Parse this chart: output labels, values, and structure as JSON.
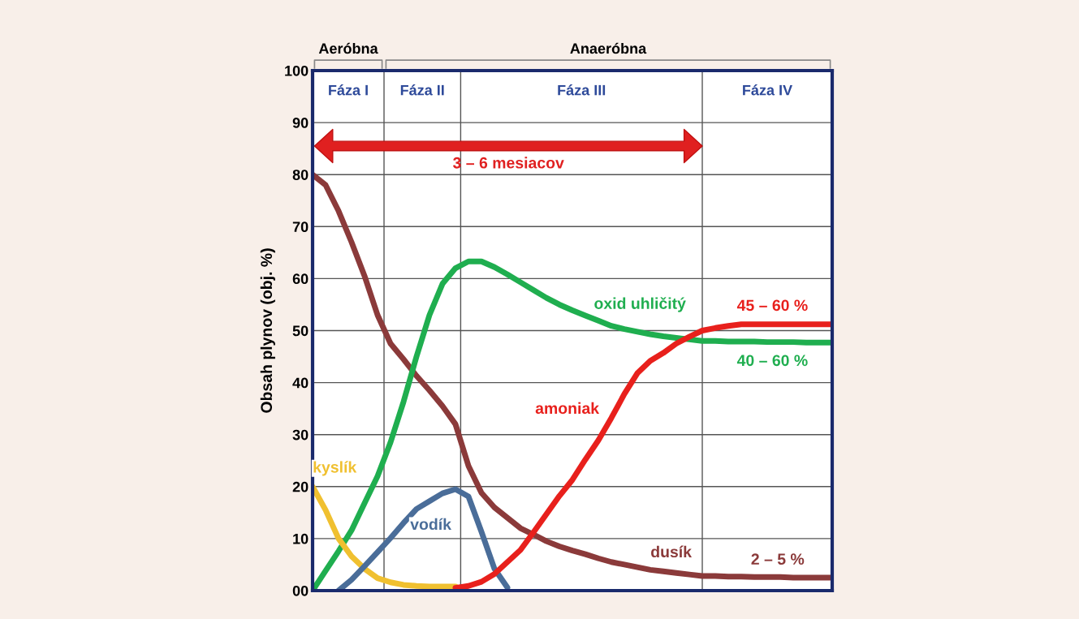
{
  "chart_data": {
    "type": "line",
    "ylabel": "Obsah plynov (obj. %)",
    "categories": [
      null,
      null,
      null,
      null,
      null,
      null,
      null,
      null,
      null,
      null,
      null,
      null,
      null,
      null,
      null,
      null,
      null,
      null,
      null,
      null,
      null,
      null,
      null,
      null,
      null,
      null,
      null,
      null,
      null,
      null,
      null,
      null,
      null,
      null,
      null,
      null,
      null,
      null,
      null,
      null,
      null
    ],
    "ylim": [
      0,
      100
    ],
    "yticks": [
      {
        "value": 0,
        "label": "00"
      },
      10,
      20,
      30,
      40,
      50,
      60,
      70,
      80,
      90,
      100
    ],
    "grid": "y",
    "marker": "none",
    "line_style": "solid",
    "series": [
      {
        "name": "dusík",
        "color": "#8b3a3a",
        "values": [
          80,
          78,
          73,
          67,
          60.5,
          53,
          47.5,
          44.5,
          41.3,
          38.5,
          35.5,
          32,
          24,
          18.8,
          16,
          14,
          12,
          10.8,
          9.5,
          8.5,
          7.7,
          7,
          6.2,
          5.5,
          5,
          4.5,
          4,
          3.7,
          3.4,
          3.1,
          2.8,
          2.8,
          2.7,
          2.7,
          2.6,
          2.6,
          2.6,
          2.5,
          2.5,
          2.5,
          2.5
        ]
      },
      {
        "name": "oxid uhličitý",
        "color": "#1fae4f",
        "values": [
          0,
          3.8,
          7.6,
          11.6,
          16.8,
          22,
          28.5,
          36.3,
          45,
          53,
          59,
          62,
          63.3,
          63.3,
          62.2,
          60.8,
          59.3,
          57.8,
          56.3,
          55,
          53.9,
          52.9,
          51.9,
          50.9,
          50.3,
          49.8,
          49.3,
          48.9,
          48.6,
          48.3,
          48,
          48,
          47.9,
          47.9,
          47.9,
          47.8,
          47.8,
          47.8,
          47.7,
          47.7,
          47.7
        ]
      },
      {
        "name": "kyslík",
        "color": "#f0c030",
        "values": [
          20,
          15.5,
          10,
          6.6,
          4.2,
          2.4,
          1.6,
          1.1,
          0.9,
          0.8,
          0.8,
          0.8,
          null,
          null,
          null,
          null,
          null,
          null,
          null,
          null,
          null,
          null,
          null,
          null,
          null,
          null,
          null,
          null,
          null,
          null,
          null,
          null,
          null,
          null,
          null,
          null,
          null,
          null,
          null,
          null,
          null
        ]
      },
      {
        "name": "vodík",
        "color": "#4a6d99",
        "values": [
          null,
          null,
          0,
          2.1,
          4.7,
          7.4,
          10.1,
          13,
          15.7,
          17.2,
          18.7,
          19.5,
          18.1,
          11.3,
          4.2,
          0.6,
          null,
          null,
          null,
          null,
          null,
          null,
          null,
          null,
          null,
          null,
          null,
          null,
          null,
          null,
          null,
          null,
          null,
          null,
          null,
          null,
          null,
          null,
          null,
          null,
          null
        ]
      },
      {
        "name": "amoniak",
        "color": "#e8201c",
        "values": [
          null,
          null,
          null,
          null,
          null,
          null,
          null,
          null,
          null,
          null,
          null,
          0.5,
          0.9,
          1.7,
          3.2,
          5.5,
          7.8,
          11.2,
          14.7,
          18.2,
          21.3,
          25.2,
          28.9,
          33.2,
          37.8,
          41.8,
          44.2,
          45.7,
          47.5,
          48.8,
          50,
          50.5,
          50.9,
          51.2,
          51.2,
          51.2,
          51.2,
          51.2,
          51.2,
          51.2,
          51.2
        ]
      }
    ],
    "annotations": [
      "Aeróbna",
      "Anaeróbna",
      "Fáza I",
      "Fáza II",
      "Fáza III",
      "Fáza IV",
      "3 – 6 mesiacov",
      "45 – 60 %",
      "40 – 60 %",
      "2 – 5 %"
    ]
  }
}
